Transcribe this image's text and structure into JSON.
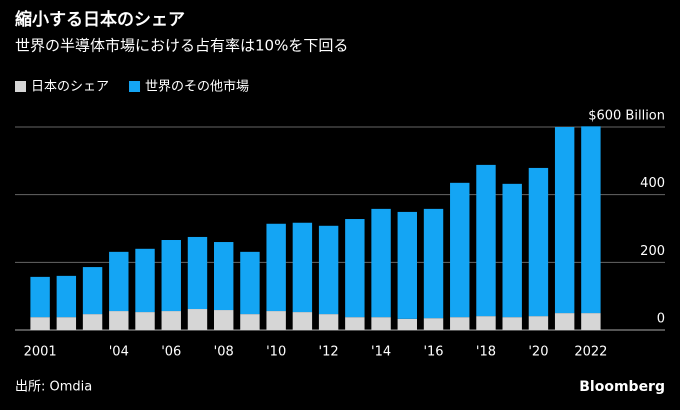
{
  "chart_data": {
    "type": "stacked_bar",
    "title": "縮小する日本のシェア",
    "subtitle": "世界の半導体市場における占有率は10%を下回る",
    "categories": [
      "2001",
      null,
      null,
      "'04",
      null,
      "'06",
      null,
      "'08",
      null,
      "'10",
      null,
      "'12",
      null,
      "'14",
      null,
      "'16",
      null,
      "'18",
      null,
      "'20",
      null,
      "2022"
    ],
    "series": [
      {
        "name": "日本のシェア",
        "color": "#d6d6d6",
        "values": [
          38,
          38,
          47,
          56,
          53,
          56,
          62,
          59,
          47,
          56,
          53,
          47,
          38,
          38,
          33,
          35,
          38,
          41,
          38,
          41,
          50,
          50
        ]
      },
      {
        "name": "世界のその他市場",
        "color": "#14a5f4",
        "values": [
          119,
          122,
          139,
          175,
          187,
          210,
          213,
          201,
          184,
          258,
          264,
          261,
          290,
          320,
          316,
          323,
          397,
          447,
          394,
          438,
          550,
          552
        ]
      }
    ],
    "ylim": [
      0,
      600
    ],
    "yticks": [
      0,
      200,
      400,
      {
        "value": 600,
        "label": "$600 Billion"
      }
    ],
    "grid": true,
    "source": "出所: Omdia",
    "brand": "Bloomberg"
  }
}
